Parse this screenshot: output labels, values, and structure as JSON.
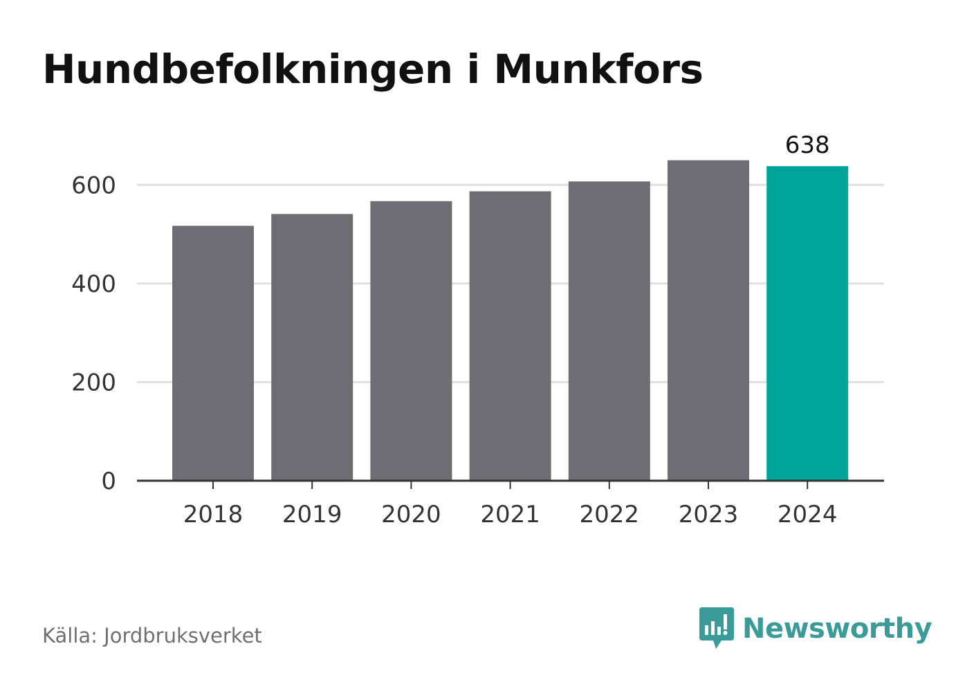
{
  "title": "Hundbefolkningen i Munkfors",
  "source": "Källa: Jordbruksverket",
  "brand": {
    "name": "Newsworthy",
    "icon": "newsworthy-logo-icon",
    "color": "#3b9b98"
  },
  "colors": {
    "bar": "#6e6d73",
    "highlight": "#00a59a",
    "grid": "#e0e0e0",
    "axis": "#333333"
  },
  "chart_data": {
    "type": "bar",
    "categories": [
      "2018",
      "2019",
      "2020",
      "2021",
      "2022",
      "2023",
      "2024"
    ],
    "values": [
      517,
      541,
      567,
      587,
      607,
      650,
      638
    ],
    "highlight_index": 6,
    "data_labels": [
      {
        "index": 6,
        "text": "638"
      }
    ],
    "ylim": [
      0,
      700
    ],
    "yticks": [
      0,
      200,
      400,
      600
    ],
    "grid": true,
    "title": "Hundbefolkningen i Munkfors",
    "xlabel": "",
    "ylabel": ""
  }
}
